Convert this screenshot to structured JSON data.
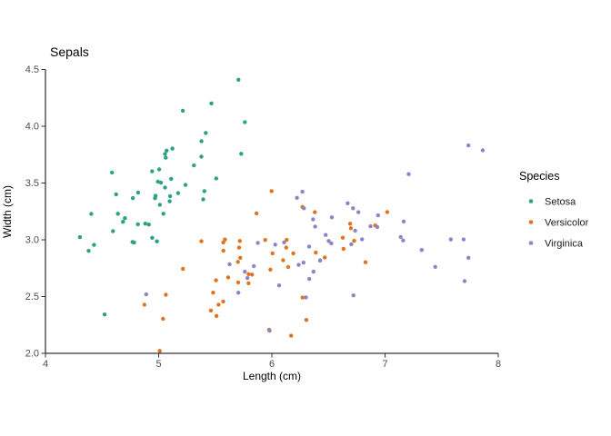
{
  "chart_data": {
    "type": "scatter",
    "title": "Sepals",
    "xlabel": "Length (cm)",
    "ylabel": "Width (cm)",
    "xlim": [
      4,
      8
    ],
    "ylim": [
      2.0,
      4.5
    ],
    "x_ticks": [
      "4",
      "5",
      "6",
      "7",
      "8"
    ],
    "y_ticks": [
      "2.0",
      "2.5",
      "3.0",
      "3.5",
      "4.0",
      "4.5"
    ],
    "grid": false,
    "point_jitter": 0.045,
    "legend": {
      "title": "Species",
      "position": "right",
      "entries": [
        "Setosa",
        "Versicolor",
        "Virginica"
      ]
    },
    "colors": {
      "setosa": "#2ca183",
      "versicolor": "#e0731f",
      "virginica": "#8b86c3"
    },
    "series": [
      {
        "name": "Setosa",
        "color": "#2ca183",
        "points": [
          [
            5.1,
            3.5
          ],
          [
            4.9,
            3.0
          ],
          [
            4.7,
            3.2
          ],
          [
            4.6,
            3.1
          ],
          [
            5.0,
            3.6
          ],
          [
            5.4,
            3.9
          ],
          [
            4.6,
            3.4
          ],
          [
            5.0,
            3.4
          ],
          [
            4.4,
            2.9
          ],
          [
            4.9,
            3.1
          ],
          [
            5.4,
            3.7
          ],
          [
            4.8,
            3.4
          ],
          [
            4.8,
            3.0
          ],
          [
            4.3,
            3.0
          ],
          [
            5.8,
            4.0
          ],
          [
            5.7,
            4.4
          ],
          [
            5.4,
            3.9
          ],
          [
            5.1,
            3.5
          ],
          [
            5.7,
            3.8
          ],
          [
            5.1,
            3.8
          ],
          [
            5.4,
            3.4
          ],
          [
            5.1,
            3.7
          ],
          [
            4.6,
            3.6
          ],
          [
            5.1,
            3.3
          ],
          [
            4.8,
            3.4
          ],
          [
            5.0,
            3.0
          ],
          [
            5.0,
            3.4
          ],
          [
            5.2,
            3.5
          ],
          [
            5.2,
            3.4
          ],
          [
            4.7,
            3.2
          ],
          [
            4.8,
            3.1
          ],
          [
            5.4,
            3.4
          ],
          [
            5.2,
            4.1
          ],
          [
            5.5,
            4.2
          ],
          [
            4.9,
            3.1
          ],
          [
            5.0,
            3.2
          ],
          [
            5.5,
            3.5
          ],
          [
            4.9,
            3.6
          ],
          [
            4.4,
            3.0
          ],
          [
            5.1,
            3.4
          ],
          [
            5.0,
            3.5
          ],
          [
            4.5,
            2.3
          ],
          [
            4.4,
            3.2
          ],
          [
            5.0,
            3.5
          ],
          [
            5.1,
            3.8
          ],
          [
            4.8,
            3.0
          ],
          [
            5.1,
            3.8
          ],
          [
            4.6,
            3.2
          ],
          [
            5.3,
            3.7
          ],
          [
            5.0,
            3.3
          ]
        ]
      },
      {
        "name": "Versicolor",
        "color": "#e0731f",
        "points": [
          [
            7.0,
            3.2
          ],
          [
            6.4,
            3.2
          ],
          [
            6.9,
            3.1
          ],
          [
            5.5,
            2.3
          ],
          [
            6.5,
            2.8
          ],
          [
            5.7,
            2.8
          ],
          [
            6.3,
            3.3
          ],
          [
            4.9,
            2.4
          ],
          [
            6.6,
            2.9
          ],
          [
            5.2,
            2.7
          ],
          [
            5.0,
            2.0
          ],
          [
            5.9,
            3.0
          ],
          [
            6.0,
            2.2
          ],
          [
            6.1,
            2.9
          ],
          [
            5.6,
            2.9
          ],
          [
            6.7,
            3.1
          ],
          [
            5.6,
            3.0
          ],
          [
            5.8,
            2.7
          ],
          [
            6.2,
            2.2
          ],
          [
            5.6,
            2.5
          ],
          [
            5.9,
            3.2
          ],
          [
            6.1,
            2.8
          ],
          [
            6.3,
            2.5
          ],
          [
            6.1,
            2.8
          ],
          [
            6.4,
            2.9
          ],
          [
            6.6,
            3.0
          ],
          [
            6.8,
            2.8
          ],
          [
            6.7,
            3.0
          ],
          [
            6.0,
            2.9
          ],
          [
            5.7,
            2.6
          ],
          [
            5.5,
            2.4
          ],
          [
            5.5,
            2.4
          ],
          [
            5.8,
            2.7
          ],
          [
            6.0,
            2.7
          ],
          [
            5.4,
            3.0
          ],
          [
            6.0,
            3.4
          ],
          [
            6.7,
            3.1
          ],
          [
            6.3,
            2.3
          ],
          [
            5.6,
            3.0
          ],
          [
            5.5,
            2.5
          ],
          [
            5.5,
            2.6
          ],
          [
            6.1,
            3.0
          ],
          [
            5.8,
            2.6
          ],
          [
            5.0,
            2.3
          ],
          [
            5.6,
            2.7
          ],
          [
            5.7,
            3.0
          ],
          [
            5.7,
            2.9
          ],
          [
            6.2,
            2.9
          ],
          [
            5.1,
            2.5
          ],
          [
            5.7,
            2.8
          ]
        ]
      },
      {
        "name": "Virginica",
        "color": "#8b86c3",
        "points": [
          [
            6.3,
            3.3
          ],
          [
            5.8,
            2.7
          ],
          [
            7.1,
            3.0
          ],
          [
            6.3,
            2.9
          ],
          [
            6.5,
            3.0
          ],
          [
            7.6,
            3.0
          ],
          [
            4.9,
            2.5
          ],
          [
            7.3,
            2.9
          ],
          [
            6.7,
            2.5
          ],
          [
            7.2,
            3.6
          ],
          [
            6.5,
            3.2
          ],
          [
            6.4,
            2.7
          ],
          [
            6.8,
            3.0
          ],
          [
            5.7,
            2.5
          ],
          [
            5.8,
            2.8
          ],
          [
            6.4,
            3.2
          ],
          [
            6.5,
            3.0
          ],
          [
            7.7,
            3.8
          ],
          [
            7.7,
            2.6
          ],
          [
            6.0,
            2.2
          ],
          [
            6.9,
            3.2
          ],
          [
            5.6,
            2.8
          ],
          [
            7.7,
            2.8
          ],
          [
            6.3,
            2.7
          ],
          [
            6.7,
            3.3
          ],
          [
            7.2,
            3.2
          ],
          [
            6.2,
            2.8
          ],
          [
            6.1,
            3.0
          ],
          [
            6.4,
            2.8
          ],
          [
            7.2,
            3.0
          ],
          [
            7.4,
            2.8
          ],
          [
            7.9,
            3.8
          ],
          [
            6.4,
            2.8
          ],
          [
            6.3,
            2.8
          ],
          [
            6.1,
            2.6
          ],
          [
            7.7,
            3.0
          ],
          [
            6.3,
            3.4
          ],
          [
            6.4,
            3.1
          ],
          [
            6.0,
            3.0
          ],
          [
            6.9,
            3.1
          ],
          [
            6.7,
            3.1
          ],
          [
            6.9,
            3.1
          ],
          [
            5.8,
            2.7
          ],
          [
            6.8,
            3.2
          ],
          [
            6.7,
            3.3
          ],
          [
            6.7,
            3.0
          ],
          [
            6.3,
            2.5
          ],
          [
            6.5,
            3.0
          ],
          [
            6.2,
            3.4
          ],
          [
            5.9,
            3.0
          ]
        ]
      }
    ]
  }
}
